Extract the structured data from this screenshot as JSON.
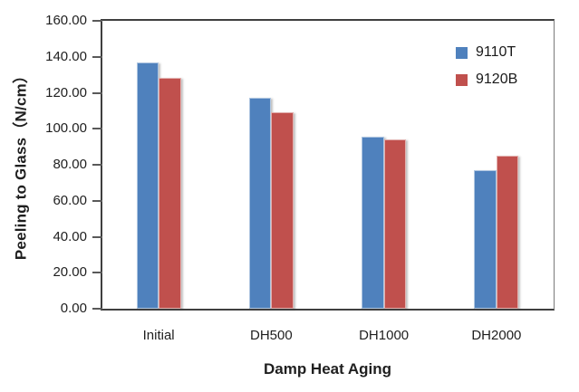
{
  "chart_data": {
    "type": "bar",
    "categories": [
      "Initial",
      "DH500",
      "DH1000",
      "DH2000"
    ],
    "series": [
      {
        "name": "9110T",
        "color": "#4F81BD",
        "values": [
          136.8,
          117.0,
          95.8,
          77.1
        ]
      },
      {
        "name": "9120B",
        "color": "#C0504D",
        "values": [
          128.5,
          109.3,
          94.3,
          85.0
        ]
      }
    ],
    "xlabel": "Damp Heat Aging",
    "ylabel": "Peeling to Glass（N/cm）",
    "ylim": [
      0,
      160
    ],
    "ytick_values": [
      0,
      20,
      40,
      60,
      80,
      100,
      120,
      140,
      160
    ],
    "ytick_labels": [
      "0.00",
      "20.00",
      "40.00",
      "60.00",
      "80.00",
      "100.00",
      "120.00",
      "140.00",
      "160.00"
    ],
    "grid": false,
    "legend_position": "inside-top-right",
    "bar_gap_between_series": 0
  }
}
